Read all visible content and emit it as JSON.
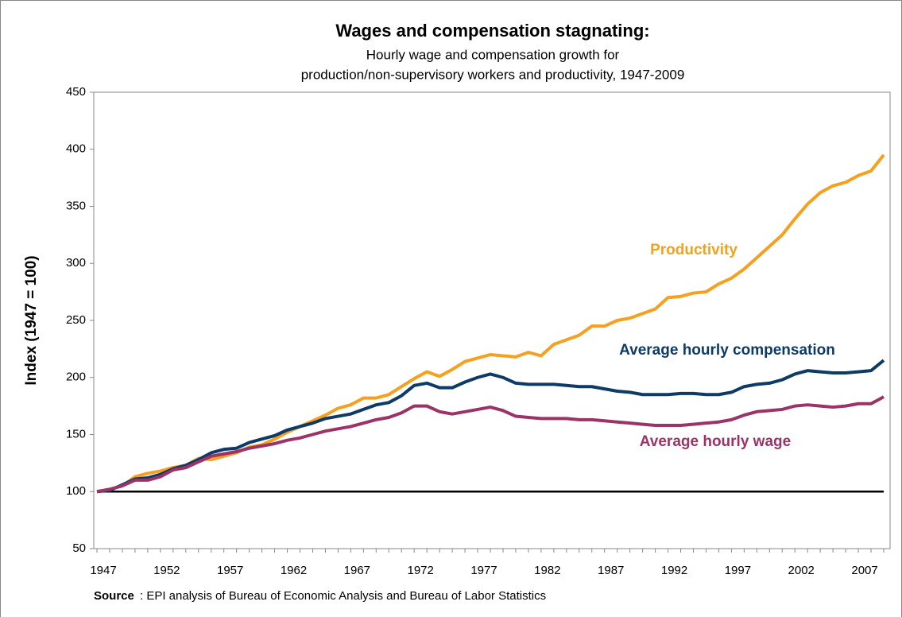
{
  "chart_data": {
    "type": "line",
    "title": "Wages and compensation stagnating:",
    "subtitle": [
      "Hourly wage and compensation growth for",
      "production/non-supervisory workers and productivity, 1947-2009"
    ],
    "y_label": "Index (1947 = 100)",
    "source_label": "Source",
    "source_text": ": EPI analysis of Bureau of Economic Analysis and Bureau of Labor Statistics",
    "categories": [
      "1947",
      null,
      null,
      null,
      null,
      "1952",
      null,
      null,
      null,
      null,
      "1957",
      null,
      null,
      null,
      null,
      "1962",
      null,
      null,
      null,
      null,
      "1967",
      null,
      null,
      null,
      null,
      "1972",
      null,
      null,
      null,
      null,
      "1977",
      null,
      null,
      null,
      null,
      "1982",
      null,
      null,
      null,
      null,
      "1987",
      null,
      null,
      null,
      null,
      "1992",
      null,
      null,
      null,
      null,
      "1997",
      null,
      null,
      null,
      null,
      "2002",
      null,
      null,
      null,
      null,
      "2007",
      null,
      null
    ],
    "ylim": [
      50,
      450
    ],
    "yticks": [
      50,
      100,
      150,
      200,
      250,
      300,
      350,
      400,
      450
    ],
    "reference_line": 100,
    "series": [
      {
        "name": "Productivity",
        "color": "#f5a01e",
        "values": [
          100,
          102,
          105,
          113,
          116,
          118,
          121,
          123,
          129,
          128,
          131,
          134,
          139,
          141,
          146,
          152,
          157,
          162,
          167,
          173,
          176,
          182,
          182,
          185,
          192,
          199,
          205,
          201,
          207,
          214,
          217,
          220,
          219,
          218,
          222,
          219,
          229,
          233,
          237,
          245,
          245,
          250,
          252,
          256,
          260,
          270,
          271,
          274,
          275,
          282,
          287,
          295,
          305,
          315,
          325,
          339,
          352,
          362,
          368,
          371,
          377,
          381,
          395
        ]
      },
      {
        "name": "Average hourly compensation",
        "color": "#0d3b66",
        "values": [
          100,
          101,
          106,
          111,
          112,
          115,
          120,
          123,
          128,
          134,
          137,
          138,
          143,
          146,
          149,
          154,
          157,
          160,
          164,
          166,
          168,
          172,
          176,
          178,
          184,
          193,
          195,
          191,
          191,
          196,
          200,
          203,
          200,
          195,
          194,
          194,
          194,
          193,
          192,
          192,
          190,
          188,
          187,
          185,
          185,
          185,
          186,
          186,
          185,
          185,
          187,
          192,
          194,
          195,
          198,
          203,
          206,
          205,
          204,
          204,
          205,
          206,
          215
        ]
      },
      {
        "name": "Average hourly wage",
        "color": "#9c3366",
        "values": [
          100,
          102,
          105,
          110,
          110,
          113,
          119,
          121,
          126,
          131,
          133,
          135,
          138,
          140,
          142,
          145,
          147,
          150,
          153,
          155,
          157,
          160,
          163,
          165,
          169,
          175,
          175,
          170,
          168,
          170,
          172,
          174,
          171,
          166,
          165,
          164,
          164,
          164,
          163,
          163,
          162,
          161,
          160,
          159,
          158,
          158,
          158,
          159,
          160,
          161,
          163,
          167,
          170,
          171,
          172,
          175,
          176,
          175,
          174,
          175,
          177,
          177,
          183
        ]
      }
    ]
  }
}
